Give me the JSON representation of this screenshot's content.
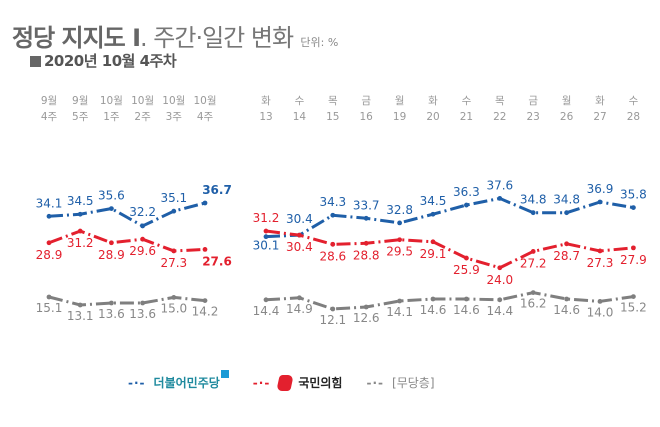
{
  "header": {
    "title_bold": "정당 지지도 Ⅰ",
    "title_light": ". 주간·일간 변화",
    "unit": "단위: %",
    "subtitle": "2020년 10월 4주차"
  },
  "colors": {
    "dem": "#1f5fa8",
    "ppp": "#e3202e",
    "ind": "#7f7f7f"
  },
  "legend": {
    "dem": "더불어민주당",
    "ppp": "국민의힘",
    "ind": "[무당층]",
    "dash": "-·-"
  },
  "chart_data": [
    {
      "type": "line",
      "title": "주간 변화",
      "categories": [
        [
          "9월",
          "4주"
        ],
        [
          "9월",
          "5주"
        ],
        [
          "10월",
          "1주"
        ],
        [
          "10월",
          "2주"
        ],
        [
          "10월",
          "3주"
        ],
        [
          "10월",
          "4주"
        ]
      ],
      "series": [
        {
          "name": "더불어민주당",
          "values": [
            34.1,
            34.5,
            35.6,
            32.2,
            35.1,
            36.7
          ]
        },
        {
          "name": "국민의힘",
          "values": [
            28.9,
            31.2,
            28.9,
            29.6,
            27.3,
            27.6
          ]
        },
        {
          "name": "[무당층]",
          "values": [
            15.1,
            13.1,
            13.6,
            13.6,
            15.0,
            14.2
          ]
        }
      ],
      "xlabel": "",
      "ylabel": "%",
      "grid": false
    },
    {
      "type": "line",
      "title": "일간 변화",
      "categories": [
        [
          "화",
          "13"
        ],
        [
          "수",
          "14"
        ],
        [
          "목",
          "15"
        ],
        [
          "금",
          "16"
        ],
        [
          "월",
          "19"
        ],
        [
          "화",
          "20"
        ],
        [
          "수",
          "21"
        ],
        [
          "목",
          "22"
        ],
        [
          "금",
          "23"
        ],
        [
          "월",
          "26"
        ],
        [
          "화",
          "27"
        ],
        [
          "수",
          "28"
        ]
      ],
      "series": [
        {
          "name": "더불어민주당",
          "values": [
            30.1,
            30.4,
            34.3,
            33.7,
            32.8,
            34.5,
            36.3,
            37.6,
            34.8,
            34.8,
            36.9,
            35.8
          ]
        },
        {
          "name": "국민의힘",
          "values": [
            31.2,
            30.4,
            28.6,
            28.8,
            29.5,
            29.1,
            25.9,
            24.0,
            27.2,
            28.7,
            27.3,
            27.9
          ]
        },
        {
          "name": "[무당층]",
          "values": [
            14.4,
            14.9,
            12.1,
            12.6,
            14.1,
            14.6,
            14.6,
            14.4,
            16.2,
            14.6,
            14.0,
            15.2
          ]
        }
      ],
      "xlabel": "",
      "ylabel": "%",
      "grid": false
    }
  ]
}
